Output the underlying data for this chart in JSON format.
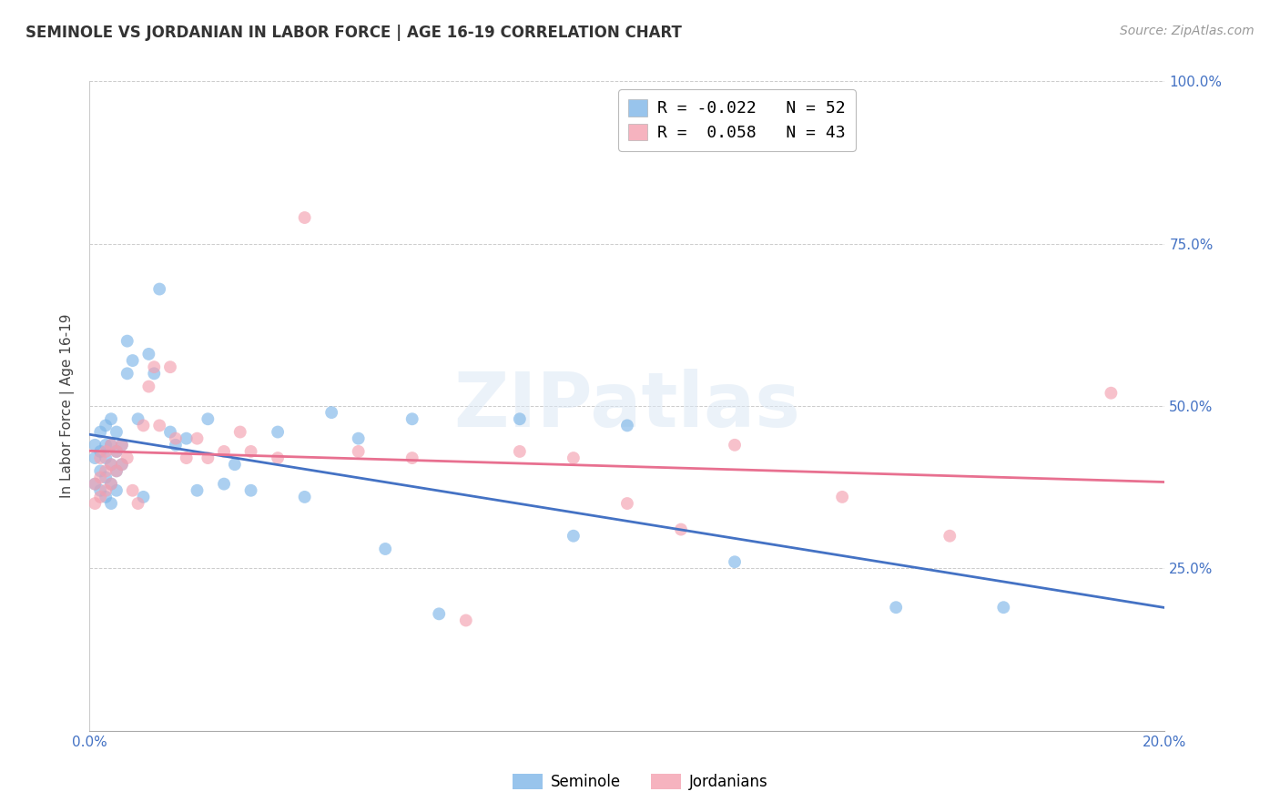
{
  "title": "SEMINOLE VS JORDANIAN IN LABOR FORCE | AGE 16-19 CORRELATION CHART",
  "source": "Source: ZipAtlas.com",
  "ylabel": "In Labor Force | Age 16-19",
  "xlim": [
    0.0,
    0.2
  ],
  "ylim": [
    0.0,
    1.0
  ],
  "seminole_R": -0.022,
  "seminole_N": 52,
  "jordanian_R": 0.058,
  "jordanian_N": 43,
  "seminole_color": "#7EB6E8",
  "jordanian_color": "#F4A0B0",
  "trend_seminole_color": "#4472C4",
  "trend_jordanian_color": "#E87090",
  "watermark": "ZIPatlas",
  "seminole_x": [
    0.001,
    0.001,
    0.001,
    0.002,
    0.002,
    0.002,
    0.002,
    0.003,
    0.003,
    0.003,
    0.003,
    0.003,
    0.004,
    0.004,
    0.004,
    0.004,
    0.004,
    0.005,
    0.005,
    0.005,
    0.005,
    0.006,
    0.006,
    0.007,
    0.007,
    0.008,
    0.009,
    0.01,
    0.011,
    0.012,
    0.013,
    0.015,
    0.016,
    0.018,
    0.02,
    0.022,
    0.025,
    0.027,
    0.03,
    0.035,
    0.04,
    0.045,
    0.05,
    0.055,
    0.06,
    0.065,
    0.08,
    0.09,
    0.1,
    0.12,
    0.15,
    0.17
  ],
  "seminole_y": [
    0.44,
    0.42,
    0.38,
    0.46,
    0.43,
    0.4,
    0.37,
    0.47,
    0.44,
    0.42,
    0.39,
    0.36,
    0.48,
    0.44,
    0.41,
    0.38,
    0.35,
    0.46,
    0.43,
    0.4,
    0.37,
    0.44,
    0.41,
    0.55,
    0.6,
    0.57,
    0.48,
    0.36,
    0.58,
    0.55,
    0.68,
    0.46,
    0.44,
    0.45,
    0.37,
    0.48,
    0.38,
    0.41,
    0.37,
    0.46,
    0.36,
    0.49,
    0.45,
    0.28,
    0.48,
    0.18,
    0.48,
    0.3,
    0.47,
    0.26,
    0.19,
    0.19
  ],
  "jordanian_x": [
    0.001,
    0.001,
    0.002,
    0.002,
    0.002,
    0.003,
    0.003,
    0.003,
    0.004,
    0.004,
    0.004,
    0.005,
    0.005,
    0.006,
    0.006,
    0.007,
    0.008,
    0.009,
    0.01,
    0.011,
    0.012,
    0.013,
    0.015,
    0.016,
    0.018,
    0.02,
    0.022,
    0.025,
    0.028,
    0.03,
    0.035,
    0.04,
    0.05,
    0.06,
    0.07,
    0.08,
    0.09,
    0.1,
    0.11,
    0.12,
    0.14,
    0.16,
    0.19
  ],
  "jordanian_y": [
    0.38,
    0.35,
    0.42,
    0.39,
    0.36,
    0.43,
    0.4,
    0.37,
    0.44,
    0.41,
    0.38,
    0.43,
    0.4,
    0.44,
    0.41,
    0.42,
    0.37,
    0.35,
    0.47,
    0.53,
    0.56,
    0.47,
    0.56,
    0.45,
    0.42,
    0.45,
    0.42,
    0.43,
    0.46,
    0.43,
    0.42,
    0.79,
    0.43,
    0.42,
    0.17,
    0.43,
    0.42,
    0.35,
    0.31,
    0.44,
    0.36,
    0.3,
    0.52
  ]
}
